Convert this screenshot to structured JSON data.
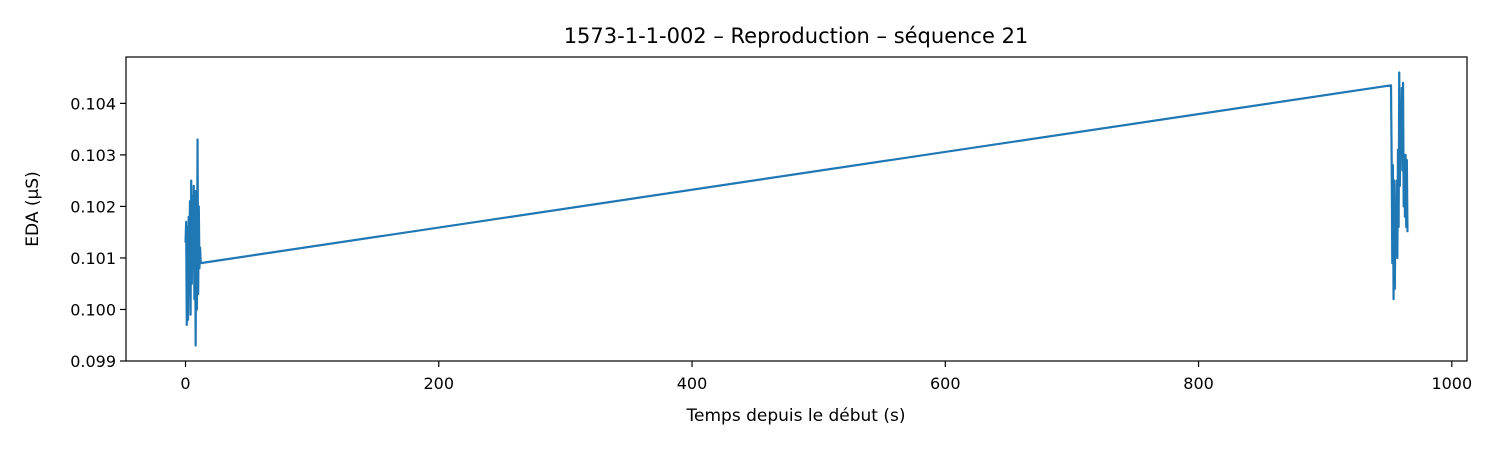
{
  "chart_data": {
    "type": "line",
    "title": "1573-1-1-002 – Reproduction – séquence 21",
    "xlabel": "Temps depuis le début (s)",
    "ylabel": "EDA (µS)",
    "xlim": [
      -47,
      1012
    ],
    "ylim": [
      0.099,
      0.1049
    ],
    "xticks": [
      0,
      200,
      400,
      600,
      800,
      1000
    ],
    "yticks": [
      0.099,
      0.1,
      0.101,
      0.102,
      0.103,
      0.104
    ],
    "xtick_labels": [
      "0",
      "200",
      "400",
      "600",
      "800",
      "1000"
    ],
    "ytick_labels": [
      "0.099",
      "0.100",
      "0.101",
      "0.102",
      "0.103",
      "0.104"
    ],
    "grid": false,
    "legend": "none",
    "line_color": "#1f77b4",
    "series": [
      {
        "x": [
          0,
          0.5,
          1,
          1.5,
          2,
          2.5,
          3,
          3.5,
          4,
          4.5,
          5,
          5.5,
          6,
          6.5,
          7,
          7.5,
          8,
          8.5,
          9,
          9.5,
          10,
          10.5,
          11,
          11.5,
          12,
          952,
          952.5,
          953,
          953.5,
          954,
          954.5,
          955,
          955.5,
          956,
          956.5,
          957,
          957.5,
          958,
          958.5,
          959,
          959.5,
          960,
          960.5,
          961,
          961.5,
          962,
          962.5,
          963,
          963.5,
          964,
          964.5,
          965
        ],
        "y": [
          0.1013,
          0.1017,
          0.0997,
          0.1016,
          0.0998,
          0.1018,
          0.1003,
          0.1021,
          0.0999,
          0.1025,
          0.1005,
          0.1022,
          0.1008,
          0.1024,
          0.1002,
          0.1023,
          0.0993,
          0.1023,
          0.1,
          0.1033,
          0.1003,
          0.102,
          0.1008,
          0.1012,
          0.1009,
          0.10435,
          0.1029,
          0.1009,
          0.1028,
          0.1002,
          0.1025,
          0.1004,
          0.1019,
          0.1012,
          0.1025,
          0.101,
          0.1031,
          0.1016,
          0.1046,
          0.1024,
          0.104,
          0.103,
          0.1043,
          0.1027,
          0.1044,
          0.102,
          0.103,
          0.1018,
          0.103,
          0.1016,
          0.1029,
          0.1015
        ]
      }
    ]
  }
}
